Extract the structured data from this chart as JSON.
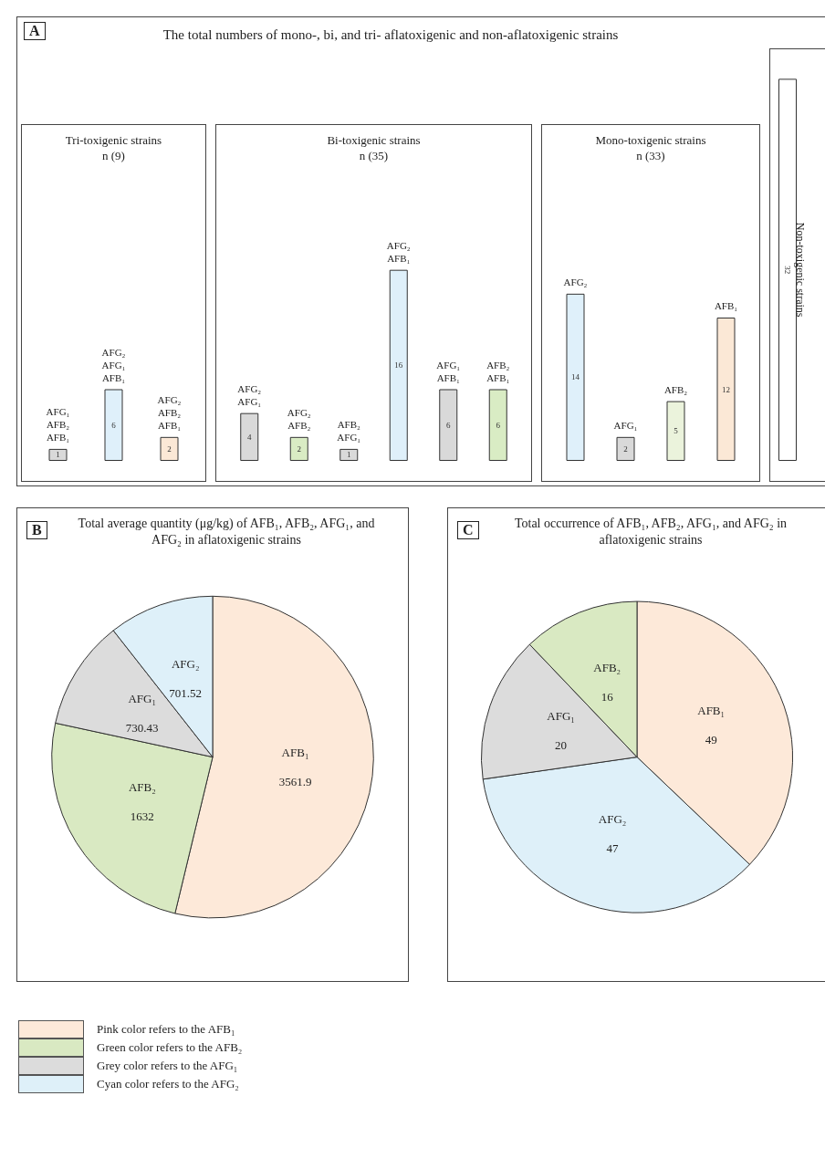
{
  "chart_data": [
    {
      "type": "bar",
      "title": "Tri-toxigenic strains",
      "subtitle": "n (9)",
      "annotations": [
        "A",
        "The total numbers of mono-, bi, and tri- aflatoxigenic and non-aflatoxigenic strains"
      ],
      "categories": [
        "AFG₁ AFB₂ AFB₁",
        "AFG₂ AFG₁ AFB₁",
        "AFG₂ AFB₂ AFB₁"
      ],
      "values": [
        1,
        6,
        2
      ],
      "colors": [
        "#d9d9d9",
        "#dff0fa",
        "#fbe8d6"
      ],
      "data_labels": true
    },
    {
      "type": "bar",
      "title": "Bi-toxigenic strains",
      "subtitle": "n (35)",
      "categories": [
        "AFG₂ AFG₁",
        "AFG₂ AFB₂",
        "AFB₂ AFG₁",
        "AFG₂ AFB₁",
        "AFG₁ AFB₁",
        "AFB₂ AFB₁"
      ],
      "values": [
        4,
        2,
        1,
        16,
        6,
        6
      ],
      "colors": [
        "#d9d9d9",
        "#d9ecc4",
        "#d9d9d9",
        "#dff0fa",
        "#d9d9d9",
        "#d9ecc4"
      ],
      "data_labels": true
    },
    {
      "type": "bar",
      "title": "Mono-toxigenic strains",
      "subtitle": "n (33)",
      "categories": [
        "AFG₂",
        "AFG₁",
        "AFB₂",
        "AFB₁"
      ],
      "values": [
        14,
        2,
        5,
        12
      ],
      "colors": [
        "#dff0fa",
        "#d9d9d9",
        "#ebf3dc",
        "#fbe8d6"
      ],
      "data_labels": true
    },
    {
      "type": "bar",
      "categories": [
        "Non-toxigenic strains"
      ],
      "values": [
        32
      ],
      "colors": [
        "#ffffff"
      ],
      "data_labels": true
    },
    {
      "type": "pie",
      "title": "Total average quantity (μg/kg) of AFB₁, AFB₂, AFG₁, and AFG₂ in aflatoxigenic strains",
      "annotations": [
        "B",
        "Pink color refers to the AFB₁",
        "Green color refers to the AFB₂",
        "Grey color refers to the AFG₁",
        "Cyan color refers to the AFG₂"
      ],
      "categories": [
        "AFB₁",
        "AFB₂",
        "AFG₁",
        "AFG₂"
      ],
      "values": [
        3561.9,
        1632,
        730.43,
        701.52
      ],
      "colors": [
        "#fde9d9",
        "#d9e9c2",
        "#dcdcdc",
        "#def0f9"
      ],
      "data_labels": true
    },
    {
      "type": "pie",
      "title": "Total occurrence of AFB₁, AFB₂, AFG₁, and AFG₂ in aflatoxigenic strains",
      "annotations": [
        "C"
      ],
      "categories": [
        "AFB₁",
        "AFG₂",
        "AFG₁",
        "AFB₂"
      ],
      "values": [
        49,
        47,
        20,
        16
      ],
      "colors": [
        "#fde9d9",
        "#def0f9",
        "#dcdcdc",
        "#d9e9c2"
      ],
      "data_labels": true
    }
  ]
}
